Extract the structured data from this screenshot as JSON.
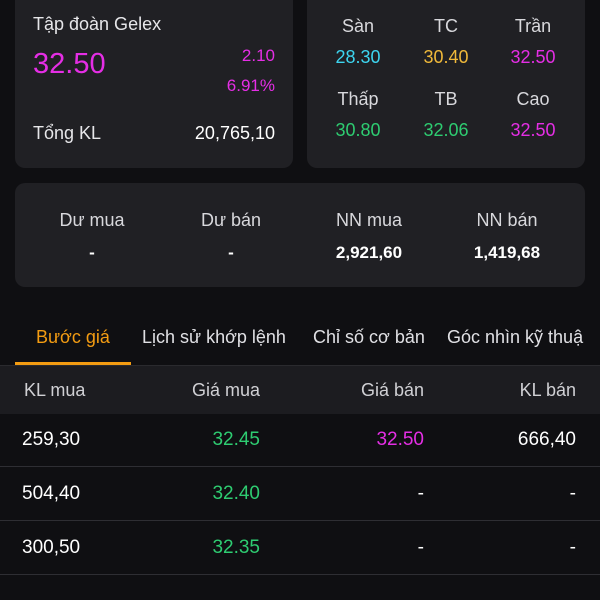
{
  "colors": {
    "background": "#0f0f12",
    "card": "#202024",
    "ceiling": "#e52ee5",
    "reference": "#f0b93a",
    "floor": "#3dd5f0",
    "up": "#2ecc71",
    "accent_tab": "#f39c12",
    "text": "#e6e6e9"
  },
  "quote": {
    "company": "Tập đoàn Gelex",
    "price": "32.50",
    "change": "2.10",
    "change_pct": "6.91%",
    "volume_label": "Tổng KL",
    "volume_value": "20,765,10"
  },
  "prices": {
    "floor_label": "Sàn",
    "floor_value": "28.30",
    "ref_label": "TC",
    "ref_value": "30.40",
    "ceil_label": "Trần",
    "ceil_value": "32.50",
    "low_label": "Thấp",
    "low_value": "30.80",
    "avg_label": "TB",
    "avg_value": "32.06",
    "high_label": "Cao",
    "high_value": "32.50"
  },
  "foreign": {
    "buy_rem_label": "Dư mua",
    "buy_rem_value": "-",
    "sell_rem_label": "Dư bán",
    "sell_rem_value": "-",
    "nn_buy_label": "NN mua",
    "nn_buy_value": "2,921,60",
    "nn_sell_label": "NN bán",
    "nn_sell_value": "1,419,68"
  },
  "tabs": [
    {
      "label": "Bước giá",
      "active": true
    },
    {
      "label": "Lịch sử khớp lệnh",
      "active": false
    },
    {
      "label": "Chỉ số cơ bản",
      "active": false
    },
    {
      "label": "Góc nhìn kỹ thuậ",
      "active": false
    }
  ],
  "book": {
    "headers": [
      "KL mua",
      "Giá mua",
      "Giá bán",
      "KL bán"
    ],
    "rows": [
      {
        "buy_vol": "259,30",
        "buy_price": "32.45",
        "sell_price": "32.50",
        "sell_vol": "666,40"
      },
      {
        "buy_vol": "504,40",
        "buy_price": "32.40",
        "sell_price": "-",
        "sell_vol": "-"
      },
      {
        "buy_vol": "300,50",
        "buy_price": "32.35",
        "sell_price": "-",
        "sell_vol": "-"
      }
    ]
  }
}
